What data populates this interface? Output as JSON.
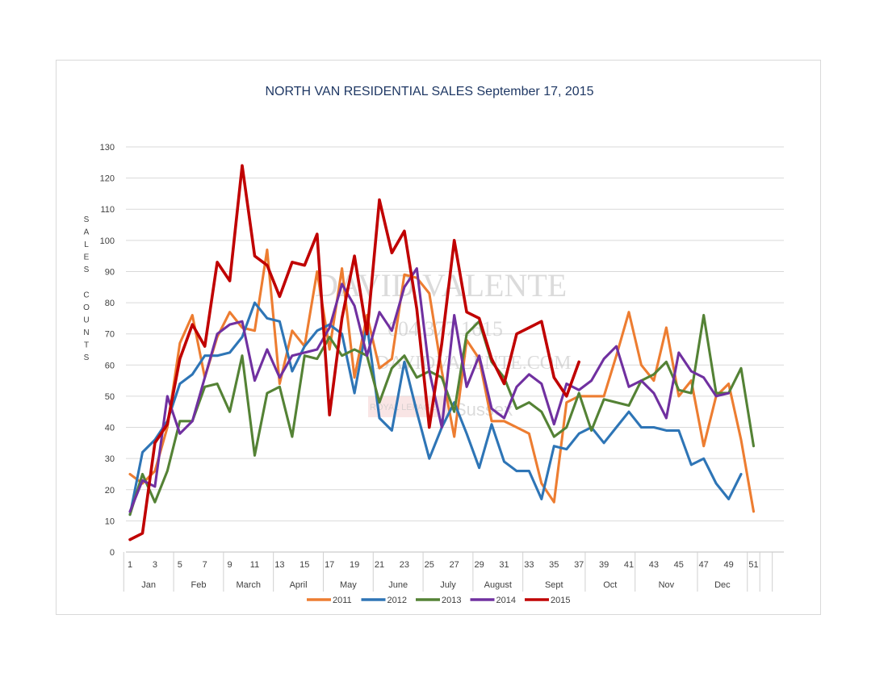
{
  "chart_data": {
    "type": "line",
    "title": "NORTH VAN RESIDENTIAL SALES  September 17, 2015",
    "ylabel": "SALES COUNTS",
    "ylim": [
      0,
      130
    ],
    "yticks": [
      0,
      10,
      20,
      30,
      40,
      50,
      60,
      70,
      80,
      90,
      100,
      110,
      120,
      130
    ],
    "x_tick_labels": [
      "1",
      "3",
      "5",
      "7",
      "9",
      "11",
      "13",
      "15",
      "17",
      "19",
      "21",
      "23",
      "25",
      "27",
      "29",
      "31",
      "33",
      "35",
      "37",
      "39",
      "41",
      "43",
      "45",
      "47",
      "49",
      "51"
    ],
    "months": [
      "Jan",
      "Feb",
      "March",
      "April",
      "May",
      "June",
      "July",
      "August",
      "Sept",
      "Oct",
      "Nov",
      "Dec"
    ],
    "grid": true,
    "legend_position": "bottom",
    "series": [
      {
        "name": "2011",
        "color": "#ed7d31",
        "values": [
          25,
          22,
          26,
          40,
          67,
          76,
          56,
          69,
          77,
          72,
          71,
          97,
          54,
          71,
          66,
          90,
          65,
          91,
          56,
          76,
          59,
          62,
          89,
          88,
          83,
          58,
          37,
          68,
          62,
          42,
          42,
          40,
          38,
          22,
          16,
          48,
          50,
          50,
          50,
          63,
          77,
          60,
          55,
          72,
          50,
          55,
          34,
          50,
          54,
          36,
          13
        ]
      },
      {
        "name": "2012",
        "color": "#2e75b6",
        "values": [
          12,
          32,
          36,
          42,
          54,
          57,
          63,
          63,
          64,
          69,
          80,
          75,
          74,
          58,
          66,
          71,
          73,
          70,
          51,
          73,
          43,
          39,
          61,
          45,
          30,
          40,
          48,
          38,
          27,
          41,
          29,
          26,
          26,
          17,
          34,
          33,
          38,
          40,
          35,
          40,
          45,
          40,
          40,
          39,
          39,
          28,
          30,
          22,
          17,
          25
        ]
      },
      {
        "name": "2013",
        "color": "#548235",
        "values": [
          12,
          25,
          16,
          26,
          42,
          42,
          53,
          54,
          45,
          63,
          31,
          51,
          53,
          37,
          63,
          62,
          69,
          63,
          65,
          63,
          48,
          59,
          63,
          56,
          58,
          56,
          45,
          70,
          74,
          61,
          56,
          46,
          48,
          45,
          37,
          40,
          51,
          39,
          49,
          48,
          47,
          55,
          57,
          61,
          52,
          51,
          76,
          51,
          51,
          59,
          34
        ]
      },
      {
        "name": "2014",
        "color": "#7030a0",
        "values": [
          13,
          23,
          21,
          50,
          38,
          42,
          56,
          70,
          73,
          74,
          55,
          65,
          56,
          63,
          64,
          65,
          72,
          86,
          79,
          63,
          77,
          71,
          85,
          91,
          58,
          40,
          76,
          53,
          63,
          46,
          43,
          53,
          57,
          54,
          41,
          54,
          52,
          55,
          62,
          66,
          53,
          55,
          51,
          43,
          64,
          58,
          56,
          50,
          51
        ]
      },
      {
        "name": "2015",
        "color": "#c00000",
        "values": [
          4,
          6,
          35,
          41,
          62,
          73,
          66,
          93,
          87,
          124,
          95,
          92,
          82,
          93,
          92,
          102,
          44,
          75,
          95,
          70,
          113,
          96,
          103,
          78,
          40,
          67,
          100,
          77,
          75,
          62,
          54,
          70,
          72,
          74,
          56,
          50,
          61
        ]
      }
    ]
  },
  "watermark": {
    "name": "DAVID VALENTE",
    "phone": "604 377 1615",
    "web": "DAVIDVALENTE.COM",
    "brokerage": "ROYAL LEPAGE",
    "office": "Sussex"
  }
}
